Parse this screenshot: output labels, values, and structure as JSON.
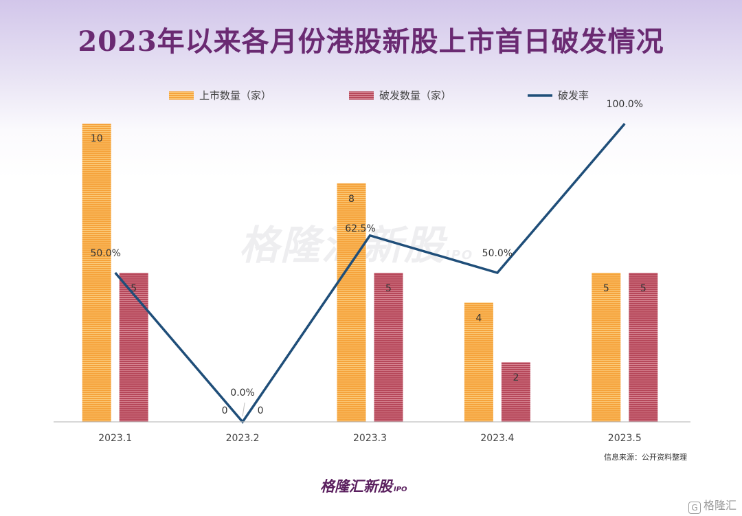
{
  "page": {
    "title": "2023年以来各月份港股新股上市首日破发情况",
    "source": "信息来源：公开资料整理",
    "watermark": "格隆汇新股",
    "watermark_sub": "IPO",
    "footer_logo": "格隆汇新股",
    "footer_sub": "IPO",
    "corner_mark": "格隆汇",
    "corner_icon": "G"
  },
  "chart_data": {
    "type": "bar",
    "title": "2023年以来各月份港股新股上市首日破发情况",
    "categories": [
      "2023.1",
      "2023.2",
      "2023.3",
      "2023.4",
      "2023.5"
    ],
    "series": [
      {
        "name": "上市数量（家）",
        "type": "bar",
        "values": [
          10,
          0,
          8,
          4,
          5
        ],
        "color": "#f0a040"
      },
      {
        "name": "破发数量（家）",
        "type": "bar",
        "values": [
          5,
          0,
          5,
          2,
          5
        ],
        "color": "#b8505e"
      },
      {
        "name": "破发率",
        "type": "line",
        "axis": "secondary",
        "values": [
          50.0,
          0.0,
          62.5,
          50.0,
          100.0
        ],
        "labels": [
          "50.0%",
          "0.0%",
          "62.5%",
          "50.0%",
          "100.0%"
        ],
        "color": "#1f4e79"
      }
    ],
    "ylim": [
      0,
      10
    ],
    "y2lim": [
      0,
      100
    ],
    "legend": "top",
    "grid": false
  }
}
